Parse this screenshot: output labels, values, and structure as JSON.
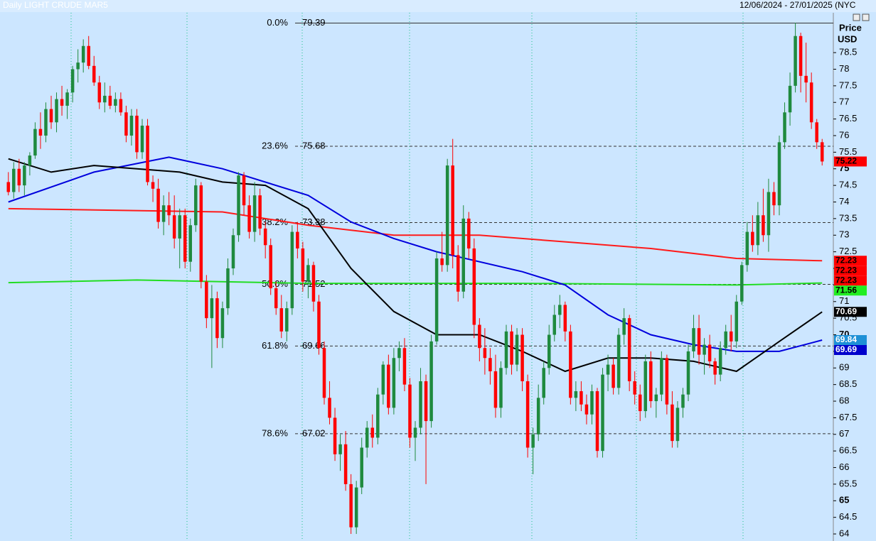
{
  "chart_data": {
    "type": "candlestick",
    "title": "Daily LIGHT CRUDE MAR5",
    "date_range": "12/06/2024 - 27/01/2025 (NYC",
    "axis_label": [
      "Price",
      "USD"
    ],
    "ylim": [
      63.83,
      79.7
    ],
    "yticks": [
      64,
      64.5,
      65,
      65.5,
      66,
      66.5,
      67,
      67.5,
      68,
      68.5,
      69,
      69.5,
      70,
      70.5,
      71,
      71.5,
      72,
      72.5,
      73,
      73.5,
      74,
      74.5,
      75,
      75.5,
      76,
      76.5,
      77,
      77.5,
      78,
      78.5
    ],
    "up_color": "#1f8a3e",
    "down_color": "#ff0000",
    "ohlc": [
      [
        74.6,
        74.9,
        74.2,
        74.3
      ],
      [
        74.3,
        75.2,
        74.1,
        75.0
      ],
      [
        75.0,
        75.3,
        74.3,
        74.5
      ],
      [
        74.5,
        75.2,
        74.2,
        75.1
      ],
      [
        75.1,
        75.5,
        74.8,
        75.4
      ],
      [
        75.4,
        76.4,
        75.3,
        76.2
      ],
      [
        76.2,
        76.7,
        75.6,
        76.0
      ],
      [
        76.0,
        77.0,
        75.8,
        76.8
      ],
      [
        76.8,
        77.2,
        76.2,
        76.4
      ],
      [
        76.4,
        77.3,
        76.1,
        77.1
      ],
      [
        77.1,
        77.5,
        76.6,
        76.9
      ],
      [
        76.9,
        77.4,
        76.5,
        77.3
      ],
      [
        77.3,
        78.1,
        77.0,
        78.0
      ],
      [
        78.0,
        78.6,
        77.6,
        78.2
      ],
      [
        78.2,
        78.9,
        77.9,
        78.7
      ],
      [
        78.7,
        79.0,
        78.0,
        78.1
      ],
      [
        78.1,
        78.4,
        77.5,
        77.6
      ],
      [
        77.6,
        77.8,
        76.8,
        77.0
      ],
      [
        77.0,
        77.6,
        76.7,
        77.2
      ],
      [
        77.2,
        77.5,
        76.8,
        76.9
      ],
      [
        76.9,
        77.3,
        76.7,
        77.1
      ],
      [
        77.1,
        77.3,
        76.6,
        76.7
      ],
      [
        76.7,
        76.9,
        75.8,
        76.0
      ],
      [
        76.0,
        76.8,
        75.7,
        76.6
      ],
      [
        76.6,
        76.8,
        75.3,
        75.5
      ],
      [
        75.5,
        76.5,
        75.3,
        76.3
      ],
      [
        76.3,
        76.5,
        74.5,
        74.6
      ],
      [
        74.6,
        74.8,
        74.0,
        74.4
      ],
      [
        74.4,
        74.7,
        73.2,
        73.4
      ],
      [
        73.4,
        74.2,
        73.0,
        73.9
      ],
      [
        73.9,
        74.3,
        73.3,
        73.6
      ],
      [
        73.6,
        74.2,
        72.6,
        72.9
      ],
      [
        72.9,
        73.8,
        72.0,
        73.6
      ],
      [
        73.6,
        73.8,
        72.0,
        72.2
      ],
      [
        72.2,
        73.5,
        71.9,
        73.3
      ],
      [
        73.3,
        74.7,
        73.1,
        74.5
      ],
      [
        74.5,
        74.6,
        71.4,
        71.6
      ],
      [
        71.6,
        71.8,
        70.2,
        70.5
      ],
      [
        70.5,
        71.5,
        69.0,
        71.1
      ],
      [
        71.1,
        71.3,
        69.6,
        69.9
      ],
      [
        69.9,
        71.0,
        69.6,
        70.8
      ],
      [
        70.8,
        72.3,
        70.6,
        72.0
      ],
      [
        72.0,
        73.2,
        71.8,
        73.0
      ],
      [
        73.0,
        74.9,
        72.8,
        74.8
      ],
      [
        74.8,
        74.9,
        73.6,
        73.9
      ],
      [
        73.9,
        74.2,
        72.9,
        73.1
      ],
      [
        73.1,
        74.6,
        72.8,
        74.2
      ],
      [
        74.2,
        74.4,
        73.0,
        73.2
      ],
      [
        73.2,
        73.4,
        72.3,
        72.7
      ],
      [
        72.7,
        72.9,
        71.2,
        71.4
      ],
      [
        71.4,
        71.6,
        70.6,
        70.8
      ],
      [
        70.8,
        71.2,
        69.9,
        70.1
      ],
      [
        70.1,
        71.0,
        69.8,
        70.8
      ],
      [
        70.8,
        73.3,
        70.6,
        73.1
      ],
      [
        73.1,
        73.4,
        72.3,
        72.6
      ],
      [
        72.6,
        72.8,
        71.3,
        71.6
      ],
      [
        71.6,
        72.3,
        71.1,
        72.1
      ],
      [
        72.1,
        72.2,
        70.7,
        71.0
      ],
      [
        71.0,
        71.2,
        69.4,
        69.6
      ],
      [
        69.6,
        69.8,
        67.9,
        68.1
      ],
      [
        68.1,
        68.6,
        67.3,
        67.5
      ],
      [
        67.5,
        67.8,
        66.2,
        66.4
      ],
      [
        66.4,
        67.0,
        65.9,
        66.7
      ],
      [
        66.7,
        67.1,
        65.3,
        65.5
      ],
      [
        65.5,
        65.8,
        64.0,
        64.2
      ],
      [
        64.2,
        65.6,
        64.0,
        65.4
      ],
      [
        65.4,
        66.9,
        65.2,
        66.6
      ],
      [
        66.6,
        67.4,
        66.3,
        67.2
      ],
      [
        67.2,
        67.6,
        66.6,
        66.9
      ],
      [
        66.9,
        68.4,
        66.7,
        68.2
      ],
      [
        68.2,
        69.2,
        67.9,
        69.1
      ],
      [
        69.1,
        69.4,
        67.6,
        67.8
      ],
      [
        67.8,
        69.6,
        67.6,
        69.3
      ],
      [
        69.3,
        69.8,
        68.9,
        69.6
      ],
      [
        69.6,
        69.9,
        68.3,
        68.5
      ],
      [
        68.5,
        68.7,
        66.6,
        66.9
      ],
      [
        66.9,
        67.4,
        66.2,
        67.2
      ],
      [
        67.2,
        69.0,
        67.0,
        68.6
      ],
      [
        68.6,
        68.8,
        65.5,
        67.4
      ],
      [
        67.4,
        70.0,
        67.2,
        69.8
      ],
      [
        69.8,
        72.5,
        69.7,
        72.3
      ],
      [
        72.3,
        73.1,
        71.9,
        72.1
      ],
      [
        72.1,
        75.3,
        71.9,
        75.1
      ],
      [
        75.1,
        75.9,
        72.0,
        72.4
      ],
      [
        72.4,
        72.7,
        71.0,
        71.3
      ],
      [
        71.3,
        73.9,
        71.1,
        73.5
      ],
      [
        73.5,
        73.7,
        72.3,
        72.6
      ],
      [
        72.6,
        72.9,
        69.9,
        70.3
      ],
      [
        70.3,
        70.5,
        69.2,
        69.6
      ],
      [
        69.6,
        70.2,
        68.8,
        69.3
      ],
      [
        69.3,
        69.6,
        68.5,
        68.9
      ],
      [
        68.9,
        69.4,
        67.5,
        67.8
      ],
      [
        67.8,
        69.2,
        67.5,
        69.0
      ],
      [
        69.0,
        70.3,
        68.8,
        70.1
      ],
      [
        70.1,
        70.3,
        68.8,
        69.1
      ],
      [
        69.1,
        70.2,
        68.9,
        70.0
      ],
      [
        70.0,
        70.2,
        68.3,
        68.6
      ],
      [
        68.6,
        68.8,
        66.3,
        66.6
      ],
      [
        66.6,
        67.2,
        65.8,
        67.0
      ],
      [
        67.0,
        68.5,
        66.8,
        68.1
      ],
      [
        68.1,
        69.2,
        67.9,
        69.0
      ],
      [
        69.0,
        70.3,
        68.8,
        70.0
      ],
      [
        70.0,
        70.9,
        69.8,
        70.6
      ],
      [
        70.6,
        71.2,
        70.2,
        70.9
      ],
      [
        70.9,
        71.0,
        69.8,
        70.1
      ],
      [
        70.1,
        70.3,
        67.9,
        68.1
      ],
      [
        68.1,
        68.6,
        67.7,
        68.3
      ],
      [
        68.3,
        68.6,
        67.7,
        67.9
      ],
      [
        67.9,
        68.2,
        67.3,
        67.6
      ],
      [
        67.6,
        68.5,
        67.3,
        68.3
      ],
      [
        68.3,
        68.4,
        66.3,
        66.5
      ],
      [
        66.5,
        69.0,
        66.3,
        68.8
      ],
      [
        68.8,
        69.4,
        68.3,
        69.1
      ],
      [
        69.1,
        69.3,
        68.2,
        68.4
      ],
      [
        68.4,
        70.2,
        68.2,
        70.0
      ],
      [
        70.0,
        70.8,
        69.7,
        70.5
      ],
      [
        70.5,
        70.6,
        68.3,
        68.6
      ],
      [
        68.6,
        68.9,
        67.9,
        68.2
      ],
      [
        68.2,
        68.5,
        67.4,
        67.7
      ],
      [
        67.7,
        69.4,
        67.5,
        69.2
      ],
      [
        69.2,
        69.5,
        67.8,
        68.0
      ],
      [
        68.0,
        68.4,
        67.5,
        68.2
      ],
      [
        68.2,
        69.5,
        68.0,
        69.3
      ],
      [
        69.3,
        69.4,
        67.6,
        67.9
      ],
      [
        67.9,
        68.3,
        66.6,
        66.8
      ],
      [
        66.8,
        68.0,
        66.6,
        67.8
      ],
      [
        67.8,
        68.4,
        67.5,
        68.2
      ],
      [
        68.2,
        69.7,
        68.0,
        69.5
      ],
      [
        69.5,
        70.6,
        69.3,
        70.2
      ],
      [
        70.2,
        70.6,
        69.1,
        69.4
      ],
      [
        69.4,
        69.9,
        68.8,
        69.7
      ],
      [
        69.7,
        70.0,
        69.0,
        69.2
      ],
      [
        69.2,
        69.3,
        68.5,
        68.8
      ],
      [
        68.8,
        69.8,
        68.6,
        69.6
      ],
      [
        69.6,
        70.3,
        69.4,
        70.1
      ],
      [
        70.1,
        70.6,
        69.5,
        69.8
      ],
      [
        69.8,
        71.2,
        69.6,
        71.0
      ],
      [
        71.0,
        72.2,
        70.9,
        72.1
      ],
      [
        72.1,
        73.4,
        71.9,
        73.1
      ],
      [
        73.1,
        73.6,
        72.5,
        72.7
      ],
      [
        72.7,
        74.0,
        72.4,
        73.6
      ],
      [
        73.6,
        74.4,
        72.8,
        73.0
      ],
      [
        73.0,
        74.7,
        72.5,
        74.3
      ],
      [
        74.3,
        74.6,
        73.6,
        73.9
      ],
      [
        73.9,
        76.0,
        73.6,
        75.8
      ],
      [
        75.8,
        77.0,
        75.6,
        76.7
      ],
      [
        76.7,
        77.9,
        76.3,
        77.5
      ],
      [
        77.5,
        79.4,
        77.3,
        79.0
      ],
      [
        79.0,
        79.1,
        77.3,
        77.8
      ],
      [
        77.8,
        78.8,
        77.0,
        77.6
      ],
      [
        77.6,
        77.9,
        76.2,
        76.4
      ],
      [
        76.4,
        76.5,
        75.6,
        75.8
      ],
      [
        75.8,
        75.9,
        75.1,
        75.22
      ]
    ],
    "series": [
      {
        "color": "#ff1a1a",
        "x": [
          0,
          40,
          56,
          72,
          88,
          104,
          120,
          136,
          152
        ],
        "values": [
          73.8,
          73.7,
          73.3,
          73.0,
          73.0,
          72.8,
          72.6,
          72.3,
          72.23
        ]
      },
      {
        "color": "#22dd22",
        "x": [
          0,
          24,
          56,
          96,
          136,
          152
        ],
        "values": [
          71.57,
          71.65,
          71.55,
          71.55,
          71.5,
          71.56
        ]
      },
      {
        "color": "#0000dd",
        "x": [
          0,
          16,
          30,
          40,
          56,
          64,
          72,
          80,
          96,
          104,
          112,
          120,
          128,
          136,
          144,
          152
        ],
        "values": [
          74.0,
          74.9,
          75.35,
          75.0,
          74.2,
          73.4,
          72.9,
          72.5,
          71.9,
          71.5,
          70.6,
          70.0,
          69.7,
          69.5,
          69.5,
          69.84
        ]
      },
      {
        "color": "#000000",
        "x": [
          0,
          8,
          16,
          24,
          32,
          40,
          48,
          56,
          64,
          72,
          80,
          88,
          96,
          104,
          112,
          120,
          128,
          136,
          144,
          152
        ],
        "values": [
          75.3,
          74.9,
          75.1,
          75.0,
          74.9,
          74.6,
          74.5,
          73.8,
          72.0,
          70.7,
          70.0,
          70.0,
          69.5,
          68.9,
          69.3,
          69.3,
          69.2,
          68.9,
          69.8,
          70.69
        ]
      }
    ],
    "fib_levels": [
      {
        "label": "0.0%",
        "value": 79.39
      },
      {
        "label": "23.6%",
        "value": 75.68
      },
      {
        "label": "38.2%",
        "value": 73.38
      },
      {
        "label": "50.0%",
        "value": 71.52
      },
      {
        "label": "61.8%",
        "value": 69.66
      },
      {
        "label": "78.6%",
        "value": 67.02
      }
    ],
    "price_labels": [
      {
        "value": 75.22,
        "color": "#ff0000"
      },
      {
        "value": 72.23,
        "color": "#ff0000"
      },
      {
        "value": 72.23,
        "color": "#ff0000"
      },
      {
        "value": 72.23,
        "color": "#ff0000"
      },
      {
        "value": 71.56,
        "color": "#22ee22"
      },
      {
        "value": 70.69,
        "color": "#000000"
      },
      {
        "value": 69.84,
        "color": "#1e90d6"
      },
      {
        "value": 69.69,
        "color": "#0000cc"
      }
    ]
  }
}
